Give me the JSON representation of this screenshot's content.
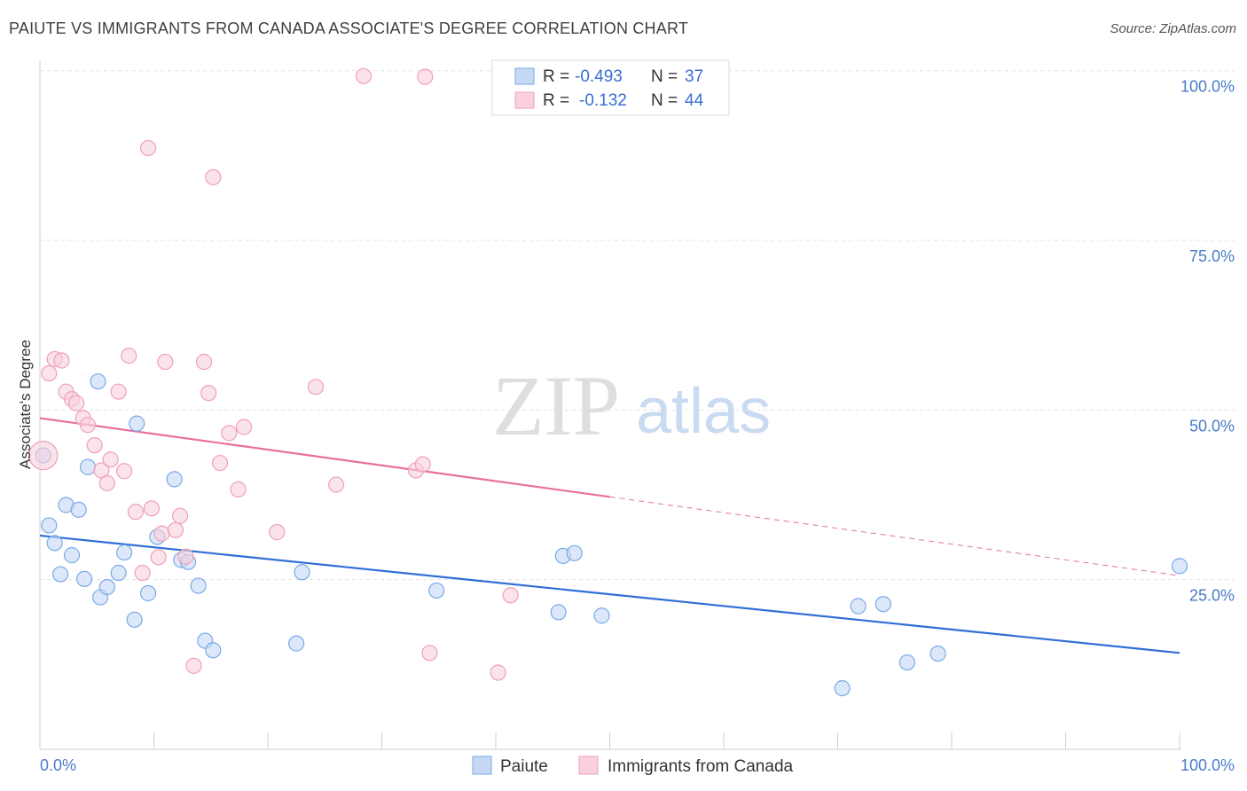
{
  "title": "PAIUTE VS IMMIGRANTS FROM CANADA ASSOCIATE'S DEGREE CORRELATION CHART",
  "source": "Source: ZipAtlas.com",
  "watermark": {
    "zip": "ZIP",
    "atlas": "atlas"
  },
  "stats": [
    {
      "r_label": "R =",
      "r_value": "-0.493",
      "n_label": "N =",
      "n_value": "37"
    },
    {
      "r_label": "R =",
      "r_value": "-0.132",
      "n_label": "N =",
      "n_value": "44"
    }
  ],
  "chart_data": {
    "type": "scatter",
    "title": "PAIUTE VS IMMIGRANTS FROM CANADA ASSOCIATE'S DEGREE CORRELATION CHART",
    "xlabel": "",
    "ylabel": "Associate's Degree",
    "xlim": [
      0,
      100
    ],
    "ylim": [
      0,
      105
    ],
    "x_tick_labels": [
      "0.0%",
      "100.0%"
    ],
    "y_ticks": [
      25,
      50,
      75,
      100
    ],
    "y_tick_labels": [
      "25.0%",
      "50.0%",
      "75.0%",
      "100.0%"
    ],
    "grid": true,
    "legend_position": "bottom-center",
    "series": [
      {
        "name": "Paiute",
        "color": "#7aaae8",
        "fill": "#c5d9f5",
        "r": -0.493,
        "n": 37,
        "trend": {
          "x0": 0,
          "y0": 31.5,
          "x1": 100,
          "y1": 14.2,
          "dashed_from": null
        },
        "points": [
          [
            0.3,
            43.3
          ],
          [
            0.8,
            33.0
          ],
          [
            1.3,
            30.4
          ],
          [
            1.8,
            25.8
          ],
          [
            2.3,
            36.0
          ],
          [
            2.8,
            28.6
          ],
          [
            3.4,
            35.3
          ],
          [
            3.9,
            25.1
          ],
          [
            4.2,
            41.6
          ],
          [
            5.1,
            54.2
          ],
          [
            5.3,
            22.4
          ],
          [
            5.9,
            23.9
          ],
          [
            6.9,
            26.0
          ],
          [
            7.4,
            29.0
          ],
          [
            8.3,
            19.1
          ],
          [
            8.5,
            48.0
          ],
          [
            9.5,
            23.0
          ],
          [
            10.3,
            31.3
          ],
          [
            11.8,
            39.8
          ],
          [
            12.4,
            27.9
          ],
          [
            13.0,
            27.6
          ],
          [
            13.9,
            24.1
          ],
          [
            14.5,
            16.0
          ],
          [
            15.2,
            14.6
          ],
          [
            22.5,
            15.6
          ],
          [
            23.0,
            26.1
          ],
          [
            34.8,
            23.4
          ],
          [
            45.5,
            20.2
          ],
          [
            45.9,
            28.5
          ],
          [
            46.9,
            28.9
          ],
          [
            49.3,
            19.7
          ],
          [
            70.4,
            9.0
          ],
          [
            71.8,
            21.1
          ],
          [
            74.0,
            21.4
          ],
          [
            76.1,
            12.8
          ],
          [
            78.8,
            14.1
          ],
          [
            100.0,
            27.0
          ]
        ]
      },
      {
        "name": "Immigrants from Canada",
        "color": "#f0a0b8",
        "fill": "#f9d0dc",
        "r": -0.132,
        "n": 44,
        "trend": {
          "x0": 0,
          "y0": 48.8,
          "x1": 100,
          "y1": 25.6,
          "dashed_from": 50
        },
        "points": [
          [
            0.3,
            43.3
          ],
          [
            0.8,
            55.4
          ],
          [
            1.3,
            57.5
          ],
          [
            1.9,
            57.3
          ],
          [
            2.3,
            52.7
          ],
          [
            2.8,
            51.6
          ],
          [
            3.2,
            51.0
          ],
          [
            3.8,
            48.8
          ],
          [
            4.2,
            47.8
          ],
          [
            4.8,
            44.8
          ],
          [
            5.4,
            41.1
          ],
          [
            5.9,
            39.2
          ],
          [
            6.2,
            42.7
          ],
          [
            6.9,
            52.7
          ],
          [
            7.4,
            41.0
          ],
          [
            7.8,
            58.0
          ],
          [
            8.4,
            35.0
          ],
          [
            9.0,
            26.0
          ],
          [
            9.5,
            88.6
          ],
          [
            9.8,
            35.5
          ],
          [
            10.4,
            28.3
          ],
          [
            10.7,
            31.8
          ],
          [
            11.0,
            57.1
          ],
          [
            11.9,
            32.3
          ],
          [
            12.3,
            34.4
          ],
          [
            12.8,
            28.4
          ],
          [
            13.5,
            12.3
          ],
          [
            14.4,
            57.1
          ],
          [
            14.8,
            52.5
          ],
          [
            15.2,
            84.3
          ],
          [
            15.8,
            42.2
          ],
          [
            16.6,
            46.6
          ],
          [
            17.4,
            38.3
          ],
          [
            17.9,
            47.5
          ],
          [
            20.8,
            32.0
          ],
          [
            24.2,
            53.4
          ],
          [
            26.0,
            39.0
          ],
          [
            28.4,
            99.2
          ],
          [
            33.0,
            41.1
          ],
          [
            33.6,
            42.0
          ],
          [
            33.8,
            99.1
          ],
          [
            34.2,
            14.2
          ],
          [
            41.3,
            22.7
          ],
          [
            40.2,
            11.3
          ]
        ]
      }
    ]
  },
  "legend": [
    {
      "label": "Paiute",
      "color": "#c5d9f5",
      "border": "#7aaae8"
    },
    {
      "label": "Immigrants from Canada",
      "color": "#f9d0dc",
      "border": "#f0a0b8"
    }
  ]
}
